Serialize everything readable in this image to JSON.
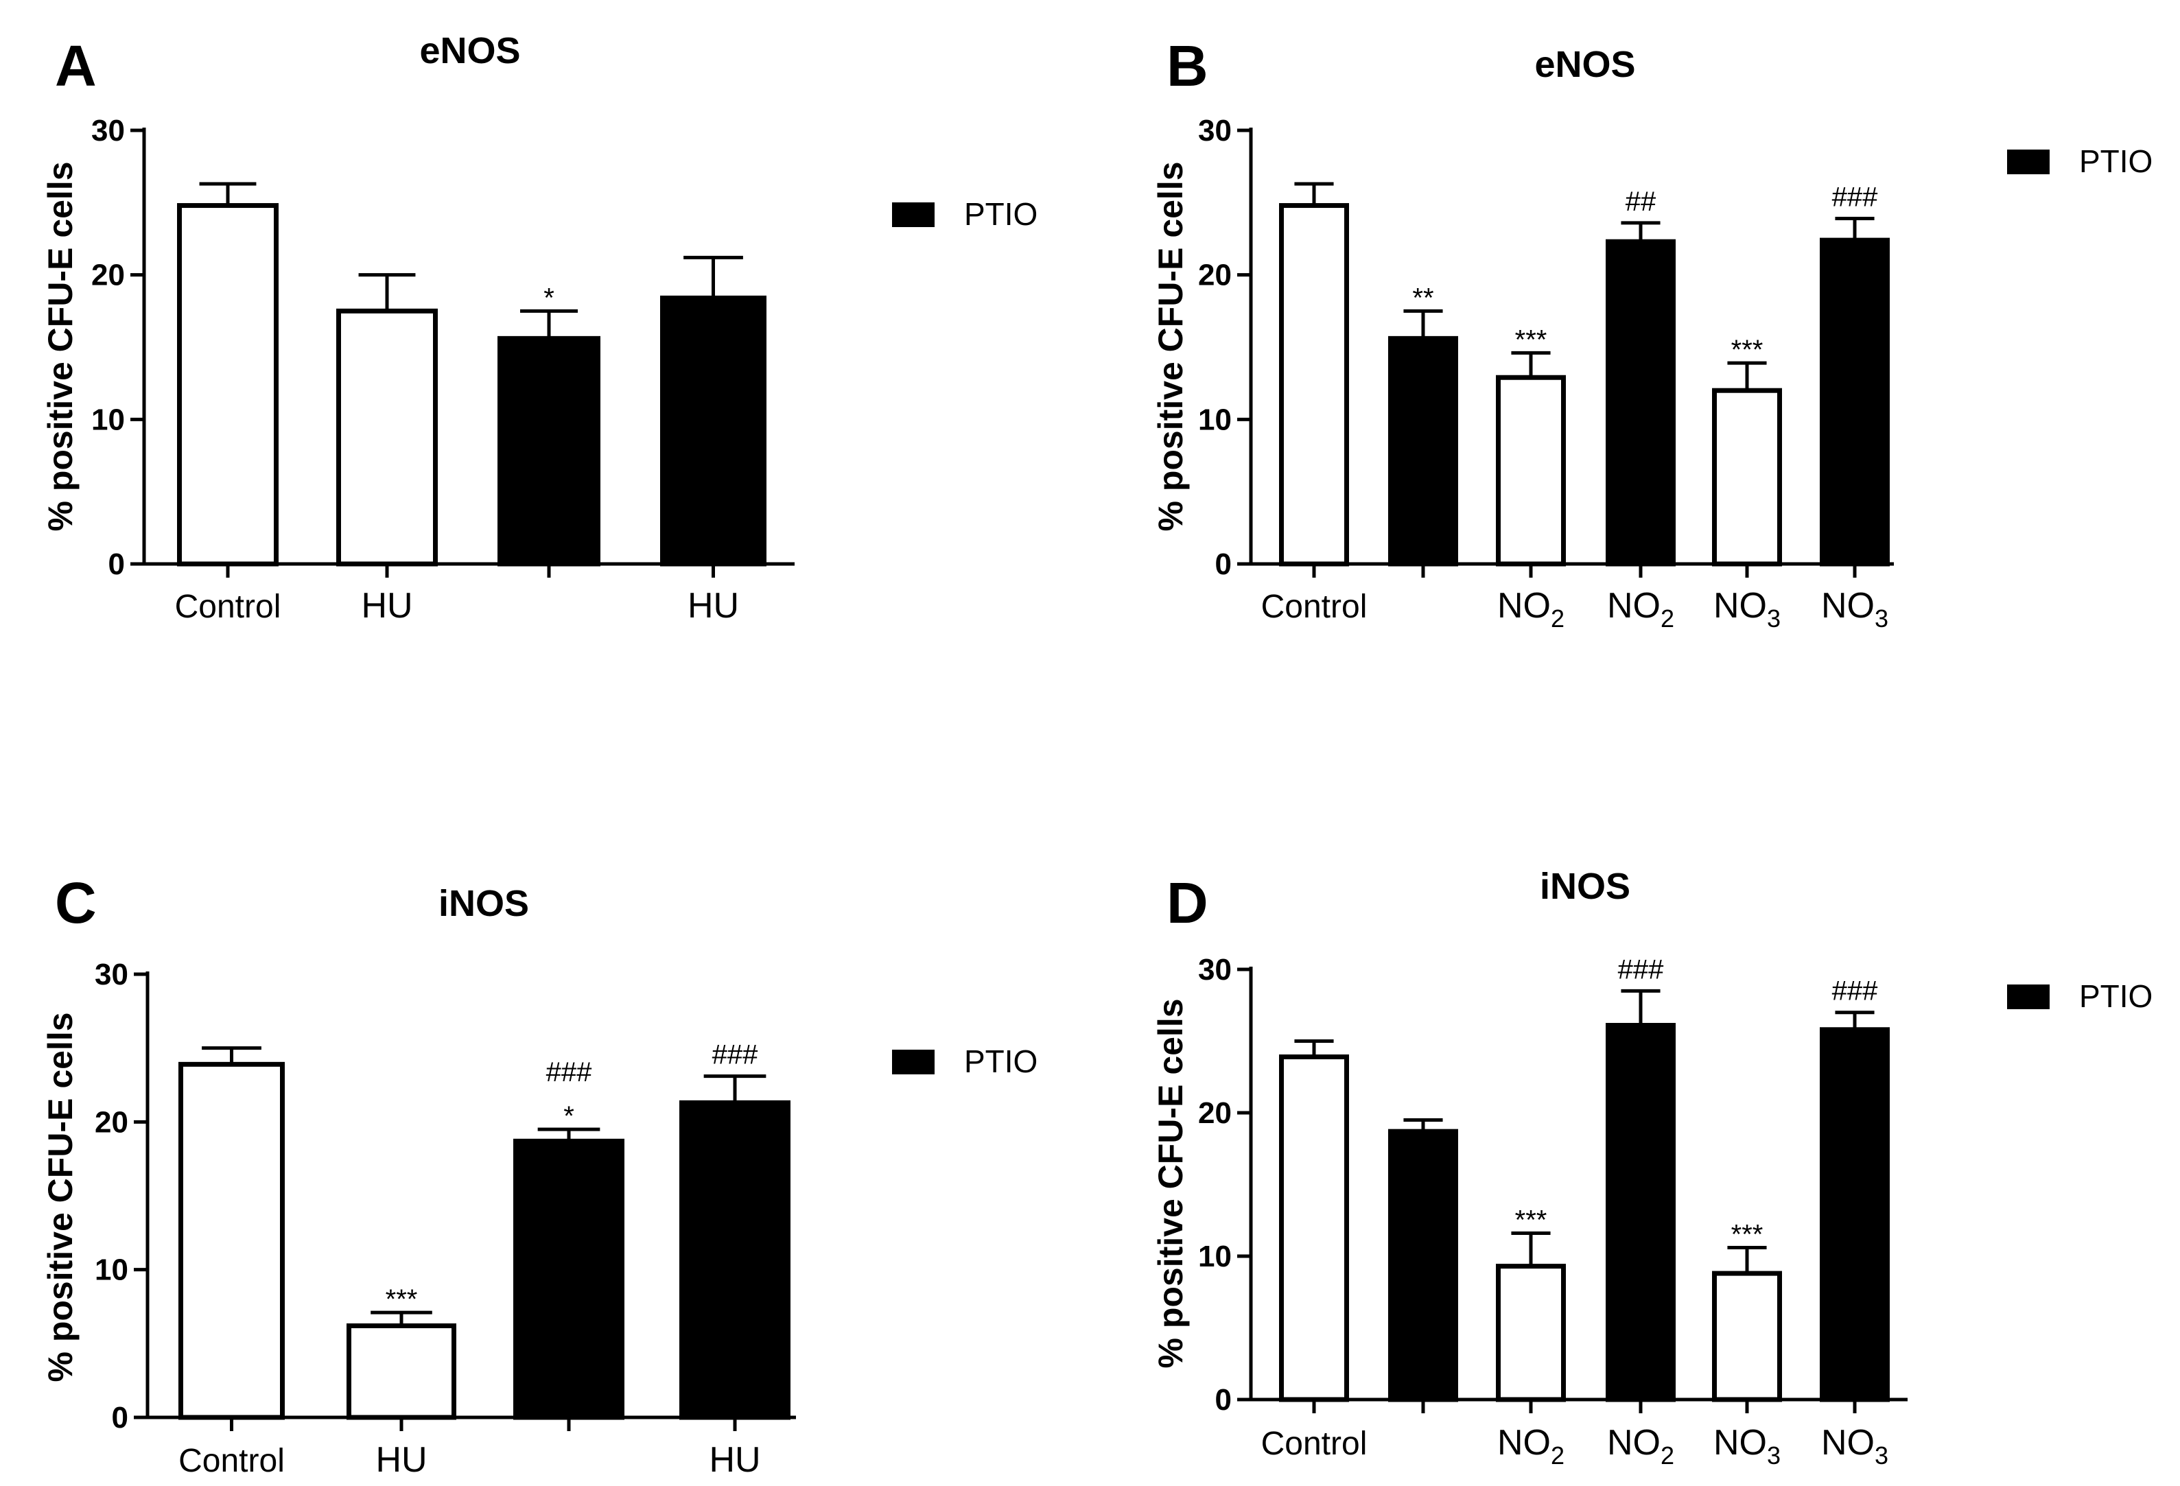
{
  "chart_data": [
    {
      "panel": "A",
      "type": "bar",
      "title": "eNOS",
      "ylabel": "% positive CFU-E cells",
      "ylim": [
        0,
        30
      ],
      "yticks": [
        0,
        10,
        20,
        30
      ],
      "legend": {
        "label": "PTIO",
        "position": "right"
      },
      "categories": [
        "Control",
        "HU",
        "",
        "HU"
      ],
      "values": [
        24.8,
        17.5,
        15.6,
        18.4
      ],
      "errors": [
        1.5,
        2.5,
        1.9,
        2.8
      ],
      "filled": [
        false,
        false,
        true,
        true
      ],
      "annotations": [
        "",
        "",
        "*",
        ""
      ]
    },
    {
      "panel": "B",
      "type": "bar",
      "title": "eNOS",
      "ylabel": "% positive CFU-E cells",
      "ylim": [
        0,
        30
      ],
      "yticks": [
        0,
        10,
        20,
        30
      ],
      "legend": {
        "label": "PTIO",
        "position": "right"
      },
      "categories": [
        "Control",
        "",
        "NO2",
        "NO2",
        "NO3",
        "NO3"
      ],
      "values": [
        24.8,
        15.6,
        12.9,
        22.3,
        12.0,
        22.4
      ],
      "errors": [
        1.5,
        1.9,
        1.7,
        1.3,
        1.9,
        1.5
      ],
      "filled": [
        false,
        true,
        false,
        true,
        false,
        true
      ],
      "annotations": [
        "",
        "**",
        "***",
        "##",
        "***",
        "###"
      ]
    },
    {
      "panel": "C",
      "type": "bar",
      "title": "iNOS",
      "ylabel": "% positive CFU-E cells",
      "ylim": [
        0,
        30
      ],
      "yticks": [
        0,
        10,
        20,
        30
      ],
      "legend": {
        "label": "PTIO",
        "position": "right"
      },
      "categories": [
        "Control",
        "HU",
        "",
        "HU"
      ],
      "values": [
        23.9,
        6.2,
        18.7,
        21.3
      ],
      "errors": [
        1.1,
        0.9,
        0.8,
        1.8
      ],
      "filled": [
        false,
        false,
        true,
        true
      ],
      "annotations": [
        "",
        "***",
        "###\n*",
        "###"
      ]
    },
    {
      "panel": "D",
      "type": "bar",
      "title": "iNOS",
      "ylabel": "% positive CFU-E cells",
      "ylim": [
        0,
        30
      ],
      "yticks": [
        0,
        10,
        20,
        30
      ],
      "legend": {
        "label": "PTIO",
        "position": "right"
      },
      "categories": [
        "Control",
        "",
        "NO2",
        "NO2",
        "NO3",
        "NO3"
      ],
      "values": [
        23.9,
        18.7,
        9.3,
        26.1,
        8.8,
        25.8
      ],
      "errors": [
        1.1,
        0.8,
        2.3,
        2.4,
        1.8,
        1.2
      ],
      "filled": [
        false,
        true,
        false,
        true,
        false,
        true
      ],
      "annotations": [
        "",
        "",
        "***",
        "###",
        "***",
        "###"
      ]
    }
  ]
}
